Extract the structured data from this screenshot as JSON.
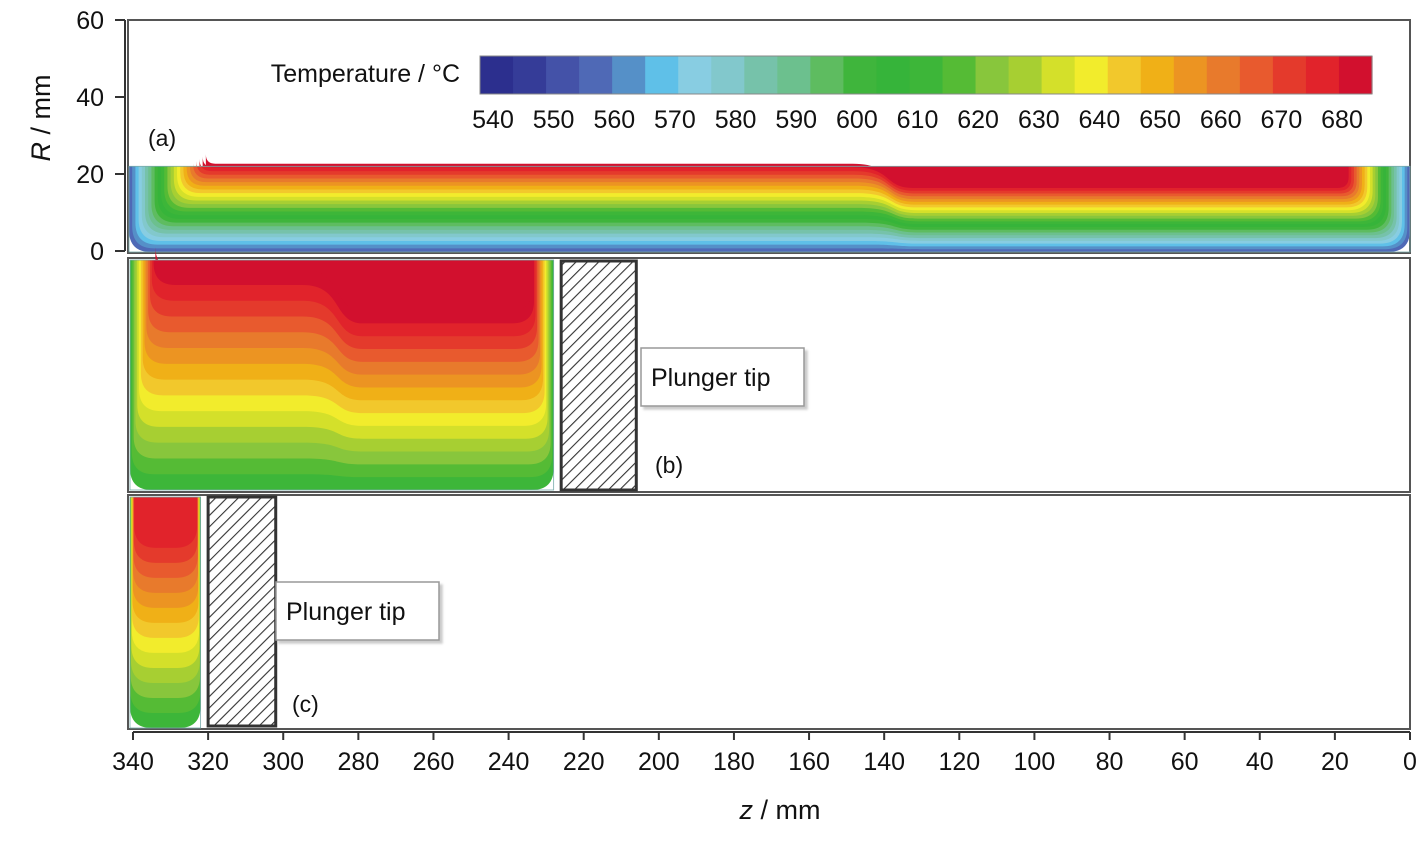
{
  "chart_data": {
    "type": "heatmap",
    "title": "",
    "colorbar": {
      "title": "Temperature / °C",
      "range": [
        540,
        680
      ],
      "ticks": [
        540,
        550,
        560,
        570,
        580,
        590,
        600,
        610,
        620,
        630,
        640,
        650,
        660,
        670,
        680
      ],
      "colors": [
        "#2c2f8e",
        "#353c98",
        "#4452a8",
        "#4f69b6",
        "#5590c8",
        "#5fc0e8",
        "#88cde2",
        "#82c8cc",
        "#76c2aa",
        "#6cc08e",
        "#5ebc60",
        "#3fb53c",
        "#36b43a",
        "#3db639",
        "#55bb35",
        "#88c63c",
        "#a7cf32",
        "#d4e02a",
        "#f2ec2c",
        "#f2c82c",
        "#f0b017",
        "#ec9422",
        "#e87a2c",
        "#e85a2e",
        "#e43a2c",
        "#e1232b",
        "#d2102e"
      ]
    },
    "x_axis": {
      "label_var": "z",
      "label_unit": " / mm",
      "range": [
        340,
        0
      ],
      "ticks": [
        340,
        320,
        300,
        280,
        260,
        240,
        220,
        200,
        180,
        160,
        140,
        120,
        100,
        80,
        60,
        40,
        20,
        0
      ]
    },
    "y_axis": {
      "label_var": "R",
      "label_unit": " / mm",
      "range": [
        0,
        60
      ],
      "ticks": [
        0,
        20,
        40,
        60
      ]
    },
    "panels": [
      {
        "id": "a",
        "label": "(a)",
        "billet_z_range": [
          340,
          0
        ],
        "billet_R_max": 22,
        "core_temperature_C": 680,
        "edge_temperature_C": 560
      },
      {
        "id": "b",
        "label": "(b)",
        "billet_z_range": [
          340,
          228
        ],
        "plunger_tip_z_range": [
          226,
          206
        ],
        "plunger_label": "Plunger tip",
        "core_temperature_C": 680,
        "edge_temperature_C": 610
      },
      {
        "id": "c",
        "label": "(c)",
        "billet_z_range": [
          340,
          322
        ],
        "plunger_tip_z_range": [
          320,
          302
        ],
        "plunger_label": "Plunger tip",
        "core_temperature_C": 670,
        "edge_temperature_C": 610
      }
    ]
  }
}
